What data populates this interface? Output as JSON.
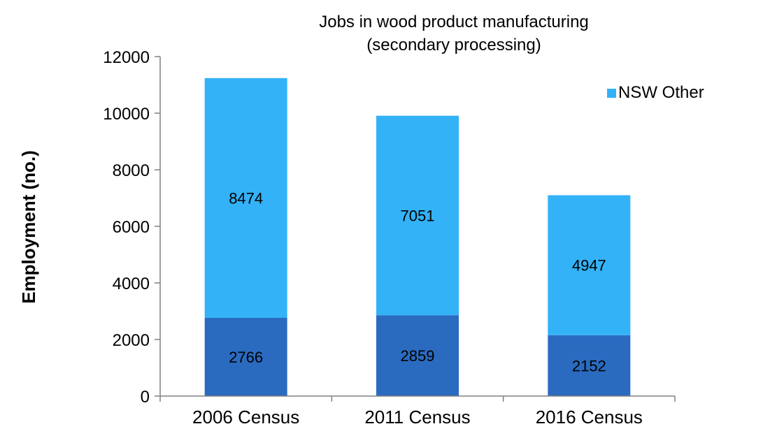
{
  "chart_data": {
    "type": "bar",
    "stacked": true,
    "title": [
      "Jobs in wood product manufacturing",
      "(secondary processing)"
    ],
    "xlabel": "",
    "ylabel": "Employment (no.)",
    "ylim": [
      0,
      12000
    ],
    "yticks": [
      0,
      2000,
      4000,
      6000,
      8000,
      10000,
      12000
    ],
    "grid": false,
    "legend_position": "top-right",
    "categories": [
      "2006 Census",
      "2011 Census",
      "2016 Census"
    ],
    "series": [
      {
        "values": [
          2766,
          2859,
          2152
        ],
        "color": "#2a6bc0",
        "in_legend": false
      },
      {
        "name": "NSW Other",
        "values": [
          8474,
          7051,
          4947
        ],
        "color": "#33b2f7",
        "in_legend": true
      }
    ]
  }
}
